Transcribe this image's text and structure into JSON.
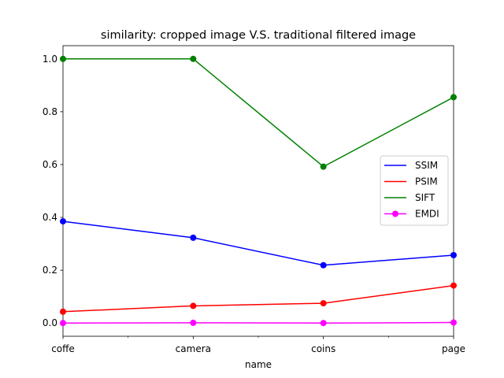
{
  "chart_data": {
    "type": "line",
    "title": "similarity: cropped image V.S. traditional filtered image",
    "xlabel": "name",
    "ylabel": "",
    "categories": [
      "coffe",
      "camera",
      "coins",
      "page"
    ],
    "ylim": [
      -0.05,
      1.05
    ],
    "yticks": [
      "0.0",
      "0.2",
      "0.4",
      "0.6",
      "0.8",
      "1.0"
    ],
    "grid": false,
    "legend_position": "right",
    "series": [
      {
        "name": "SSIM",
        "color": "#0000ff",
        "values": [
          0.385,
          0.323,
          0.219,
          0.257
        ]
      },
      {
        "name": "PSIM",
        "color": "#ff0000",
        "values": [
          0.043,
          0.065,
          0.075,
          0.142
        ]
      },
      {
        "name": "SIFT",
        "color": "#008000",
        "values": [
          1.0,
          1.0,
          0.592,
          0.855
        ]
      },
      {
        "name": "EMDI",
        "color": "#ff00ff",
        "values": [
          0.0,
          0.001,
          0.0,
          0.002
        ]
      }
    ]
  }
}
